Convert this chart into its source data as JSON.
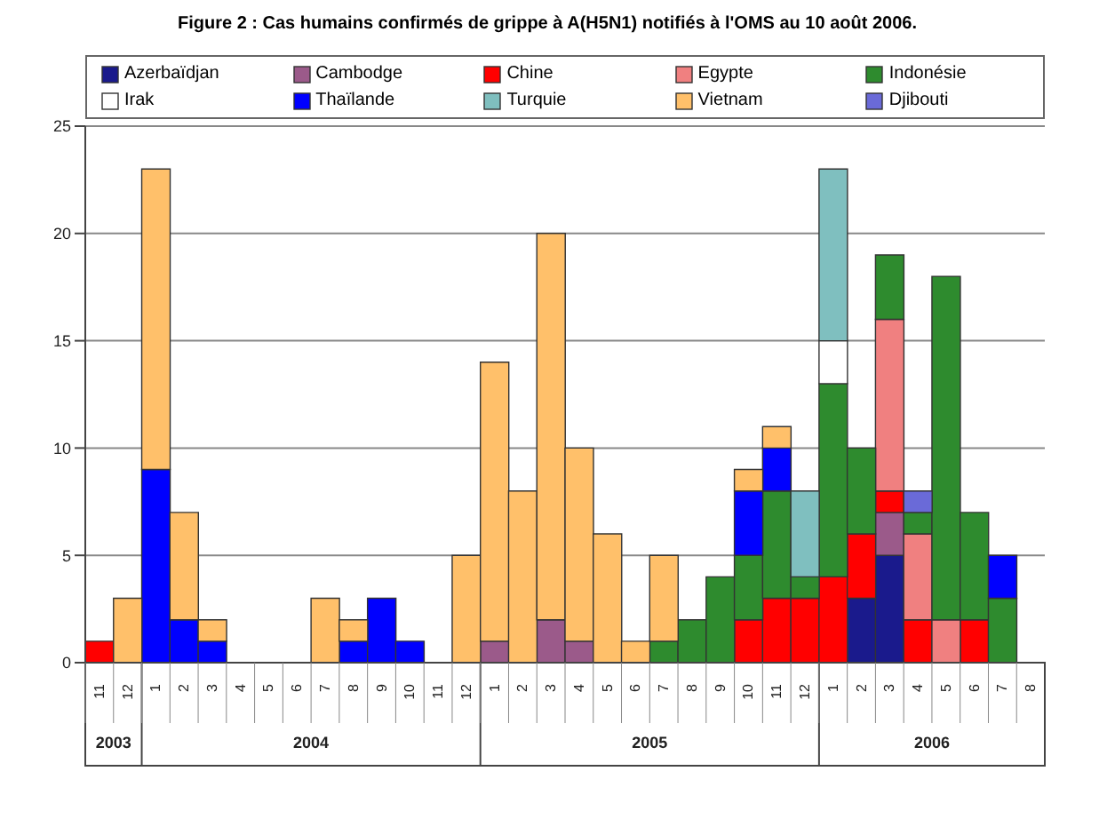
{
  "chart_data": {
    "type": "bar",
    "stacked": true,
    "title": "Figure 2 : Cas humains confirmés de grippe à A(H5N1) notifiés à l'OMS au 10 août 2006.",
    "categories": [
      "11",
      "12",
      "1",
      "2",
      "3",
      "4",
      "5",
      "6",
      "7",
      "8",
      "9",
      "10",
      "11",
      "12",
      "1",
      "2",
      "3",
      "4",
      "5",
      "6",
      "7",
      "8",
      "9",
      "10",
      "11",
      "12",
      "1",
      "2",
      "3",
      "4",
      "5",
      "6",
      "7",
      "8"
    ],
    "annotations": [
      "2003",
      "2004",
      "2005",
      "2006"
    ],
    "series": [
      {
        "name": "Azerbaïdjan",
        "color": "#1a1a8c",
        "values": [
          0,
          0,
          0,
          0,
          0,
          0,
          0,
          0,
          0,
          0,
          0,
          0,
          0,
          0,
          0,
          0,
          0,
          0,
          0,
          0,
          0,
          0,
          0,
          0,
          0,
          0,
          0,
          3,
          5,
          0,
          0,
          0,
          0,
          0
        ]
      },
      {
        "name": "Cambodge",
        "color": "#9b5a8a",
        "values": [
          0,
          0,
          0,
          0,
          0,
          0,
          0,
          0,
          0,
          0,
          0,
          0,
          0,
          0,
          1,
          0,
          2,
          1,
          0,
          0,
          0,
          0,
          0,
          0,
          0,
          0,
          0,
          0,
          2,
          0,
          0,
          0,
          0,
          0
        ]
      },
      {
        "name": "Chine",
        "color": "#ff0000",
        "values": [
          1,
          0,
          0,
          0,
          0,
          0,
          0,
          0,
          0,
          0,
          0,
          0,
          0,
          0,
          0,
          0,
          0,
          0,
          0,
          0,
          0,
          0,
          0,
          2,
          3,
          3,
          4,
          3,
          1,
          2,
          0,
          2,
          0,
          0
        ]
      },
      {
        "name": "Egypte",
        "color": "#f08080",
        "values": [
          0,
          0,
          0,
          0,
          0,
          0,
          0,
          0,
          0,
          0,
          0,
          0,
          0,
          0,
          0,
          0,
          0,
          0,
          0,
          0,
          0,
          0,
          0,
          0,
          0,
          0,
          0,
          0,
          8,
          4,
          2,
          0,
          0,
          0
        ]
      },
      {
        "name": "Indonésie",
        "color": "#2e8b2e",
        "values": [
          0,
          0,
          0,
          0,
          0,
          0,
          0,
          0,
          0,
          0,
          0,
          0,
          0,
          0,
          0,
          0,
          0,
          0,
          0,
          0,
          1,
          2,
          4,
          3,
          5,
          1,
          9,
          4,
          3,
          1,
          16,
          5,
          3,
          0
        ]
      },
      {
        "name": "Irak",
        "color": "#ffffff",
        "values": [
          0,
          0,
          0,
          0,
          0,
          0,
          0,
          0,
          0,
          0,
          0,
          0,
          0,
          0,
          0,
          0,
          0,
          0,
          0,
          0,
          0,
          0,
          0,
          0,
          0,
          0,
          2,
          0,
          0,
          0,
          0,
          0,
          0,
          0
        ]
      },
      {
        "name": "Thaïlande",
        "color": "#0000ff",
        "values": [
          0,
          0,
          9,
          2,
          1,
          0,
          0,
          0,
          0,
          1,
          3,
          1,
          0,
          0,
          0,
          0,
          0,
          0,
          0,
          0,
          0,
          0,
          0,
          3,
          2,
          0,
          0,
          0,
          0,
          0,
          0,
          0,
          2,
          0
        ]
      },
      {
        "name": "Turquie",
        "color": "#7fbfbf",
        "values": [
          0,
          0,
          0,
          0,
          0,
          0,
          0,
          0,
          0,
          0,
          0,
          0,
          0,
          0,
          0,
          0,
          0,
          0,
          0,
          0,
          0,
          0,
          0,
          0,
          0,
          4,
          8,
          0,
          0,
          0,
          0,
          0,
          0,
          0
        ]
      },
      {
        "name": "Vietnam",
        "color": "#ffc06a",
        "values": [
          0,
          3,
          14,
          5,
          1,
          0,
          0,
          0,
          3,
          1,
          0,
          0,
          0,
          5,
          13,
          8,
          18,
          9,
          6,
          1,
          4,
          0,
          0,
          1,
          1,
          0,
          0,
          0,
          0,
          0,
          0,
          0,
          0,
          0
        ]
      },
      {
        "name": "Djibouti",
        "color": "#6a6ad8",
        "values": [
          0,
          0,
          0,
          0,
          0,
          0,
          0,
          0,
          0,
          0,
          0,
          0,
          0,
          0,
          0,
          0,
          0,
          0,
          0,
          0,
          0,
          0,
          0,
          0,
          0,
          0,
          0,
          0,
          0,
          1,
          0,
          0,
          0,
          0
        ]
      }
    ],
    "ylim": [
      0,
      25
    ],
    "yticks": [
      0,
      5,
      10,
      15,
      20,
      25
    ],
    "grid": "y",
    "legend": "top"
  }
}
